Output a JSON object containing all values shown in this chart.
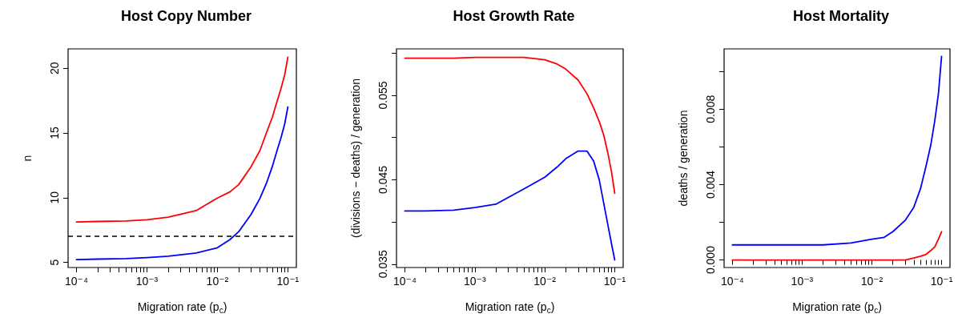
{
  "chart_data": [
    {
      "type": "line",
      "title": "Host Copy Number",
      "xlabel": "Migration rate (p$_{c}$)",
      "ylabel": "n",
      "log": "x",
      "marker": "none",
      "line_style": "solid",
      "x": [
        0.0001,
        0.0002,
        0.0005,
        0.001,
        0.002,
        0.005,
        0.01,
        0.015,
        0.02,
        0.03,
        0.04,
        0.05,
        0.06,
        0.07,
        0.08,
        0.09,
        0.1
      ],
      "series": [
        {
          "color": "#ff0000",
          "values": [
            8.12,
            8.16,
            8.2,
            8.29,
            8.49,
            9.0,
            9.97,
            10.44,
            11.0,
            12.39,
            13.62,
            15.06,
            16.19,
            17.42,
            18.45,
            19.48,
            20.85
          ]
        },
        {
          "color": "#0000ff",
          "values": [
            5.21,
            5.25,
            5.29,
            5.37,
            5.47,
            5.72,
            6.13,
            6.75,
            7.36,
            8.7,
            9.93,
            11.16,
            12.39,
            13.62,
            14.65,
            15.68,
            17.01
          ]
        }
      ],
      "ref_lines": [
        {
          "axis": "y",
          "value": 7,
          "color": "#000000",
          "line_style": "dashed"
        }
      ],
      "xlim": [
        7.6e-05,
        0.132
      ],
      "ylim": [
        4.6,
        21.5
      ],
      "yticks": [
        5,
        10,
        15,
        20
      ],
      "xticks": [
        {
          "value": 0.0001,
          "label": "10⁻⁴"
        },
        {
          "value": 0.0002,
          "label": null
        },
        {
          "value": 0.0003,
          "label": null
        },
        {
          "value": 0.0004,
          "label": null
        },
        {
          "value": 0.0005,
          "label": null
        },
        {
          "value": 0.0006,
          "label": null
        },
        {
          "value": 0.0007,
          "label": null
        },
        {
          "value": 0.0008,
          "label": null
        },
        {
          "value": 0.0009,
          "label": null
        },
        {
          "value": 0.001,
          "label": "10⁻³"
        },
        {
          "value": 0.002,
          "label": null
        },
        {
          "value": 0.003,
          "label": null
        },
        {
          "value": 0.004,
          "label": null
        },
        {
          "value": 0.005,
          "label": null
        },
        {
          "value": 0.006,
          "label": null
        },
        {
          "value": 0.007,
          "label": null
        },
        {
          "value": 0.008,
          "label": null
        },
        {
          "value": 0.009,
          "label": null
        },
        {
          "value": 0.01,
          "label": "10⁻²"
        },
        {
          "value": 0.02,
          "label": null
        },
        {
          "value": 0.03,
          "label": null
        },
        {
          "value": 0.04,
          "label": null
        },
        {
          "value": 0.05,
          "label": null
        },
        {
          "value": 0.06,
          "label": null
        },
        {
          "value": 0.07,
          "label": null
        },
        {
          "value": 0.08,
          "label": null
        },
        {
          "value": 0.09,
          "label": null
        },
        {
          "value": 0.1,
          "label": "10⁻¹"
        }
      ]
    },
    {
      "type": "line",
      "title": "Host Growth Rate",
      "xlabel": "Migration rate (p$_{c}$)",
      "ylabel": "(divisions − deaths) / generation",
      "log": "x",
      "marker": "none",
      "line_style": "solid",
      "x": [
        0.0001,
        0.0002,
        0.0005,
        0.001,
        0.002,
        0.005,
        0.01,
        0.015,
        0.02,
        0.03,
        0.04,
        0.05,
        0.06,
        0.07,
        0.08,
        0.09,
        0.1
      ],
      "series": [
        {
          "color": "#ff0000",
          "values": [
            0.0594,
            0.0594,
            0.0594,
            0.0595,
            0.0595,
            0.0595,
            0.0592,
            0.0587,
            0.0581,
            0.0568,
            0.0552,
            0.0535,
            0.0519,
            0.0502,
            0.0481,
            0.0459,
            0.0434
          ]
        },
        {
          "color": "#0000ff",
          "values": [
            0.0413,
            0.0413,
            0.0414,
            0.0417,
            0.0421,
            0.0439,
            0.0453,
            0.0465,
            0.0475,
            0.0484,
            0.0484,
            0.0472,
            0.045,
            0.0421,
            0.0396,
            0.0374,
            0.0355
          ]
        }
      ],
      "xlim": [
        7.6e-05,
        0.132
      ],
      "ylim": [
        0.0346,
        0.0605
      ],
      "yticks": [
        0.035,
        {
          "value": 0.04,
          "label": null
        },
        0.045,
        {
          "value": 0.05,
          "label": null
        },
        0.055,
        {
          "value": 0.06,
          "label": null
        }
      ],
      "xticks": [
        {
          "value": 0.0001,
          "label": "10⁻⁴"
        },
        {
          "value": 0.0002,
          "label": null
        },
        {
          "value": 0.0003,
          "label": null
        },
        {
          "value": 0.0004,
          "label": null
        },
        {
          "value": 0.0005,
          "label": null
        },
        {
          "value": 0.0006,
          "label": null
        },
        {
          "value": 0.0007,
          "label": null
        },
        {
          "value": 0.0008,
          "label": null
        },
        {
          "value": 0.0009,
          "label": null
        },
        {
          "value": 0.001,
          "label": "10⁻³"
        },
        {
          "value": 0.002,
          "label": null
        },
        {
          "value": 0.003,
          "label": null
        },
        {
          "value": 0.004,
          "label": null
        },
        {
          "value": 0.005,
          "label": null
        },
        {
          "value": 0.006,
          "label": null
        },
        {
          "value": 0.007,
          "label": null
        },
        {
          "value": 0.008,
          "label": null
        },
        {
          "value": 0.009,
          "label": null
        },
        {
          "value": 0.01,
          "label": "10⁻²"
        },
        {
          "value": 0.02,
          "label": null
        },
        {
          "value": 0.03,
          "label": null
        },
        {
          "value": 0.04,
          "label": null
        },
        {
          "value": 0.05,
          "label": null
        },
        {
          "value": 0.06,
          "label": null
        },
        {
          "value": 0.07,
          "label": null
        },
        {
          "value": 0.08,
          "label": null
        },
        {
          "value": 0.09,
          "label": null
        },
        {
          "value": 0.1,
          "label": "10⁻¹"
        }
      ]
    },
    {
      "type": "line",
      "title": "Host Mortality",
      "xlabel": "Migration rate (p$_{c}$)",
      "ylabel": "deaths / generation",
      "log": "x",
      "marker": "none",
      "line_style": "solid",
      "x": [
        0.0001,
        0.0002,
        0.0005,
        0.001,
        0.002,
        0.005,
        0.01,
        0.015,
        0.02,
        0.03,
        0.04,
        0.05,
        0.06,
        0.07,
        0.08,
        0.09,
        0.1
      ],
      "series": [
        {
          "color": "#0000ff",
          "values": [
            0.0008,
            0.0008,
            0.0008,
            0.0008,
            0.0008,
            0.0009,
            0.0011,
            0.0012,
            0.0015,
            0.0021,
            0.0028,
            0.0038,
            0.005,
            0.0061,
            0.0074,
            0.0088,
            0.0108
          ]
        },
        {
          "color": "#ff0000",
          "values": [
            0,
            0,
            0,
            0,
            0,
            0,
            0,
            0,
            0,
            0,
            0.0001,
            0.0002,
            0.0003,
            0.0005,
            0.0007,
            0.0011,
            0.0015
          ]
        }
      ],
      "xlim": [
        7.6e-05,
        0.132
      ],
      "ylim": [
        -0.0004,
        0.0112
      ],
      "yticks": [
        {
          "value": 0,
          "label": "0.000"
        },
        {
          "value": 0.002,
          "label": null
        },
        {
          "value": 0.004,
          "label": "0.004"
        },
        {
          "value": 0.006,
          "label": null
        },
        {
          "value": 0.008,
          "label": "0.008"
        },
        {
          "value": 0.01,
          "label": null
        }
      ],
      "xticks": [
        {
          "value": 0.0001,
          "label": "10⁻⁴"
        },
        {
          "value": 0.0002,
          "label": null
        },
        {
          "value": 0.0003,
          "label": null
        },
        {
          "value": 0.0004,
          "label": null
        },
        {
          "value": 0.0005,
          "label": null
        },
        {
          "value": 0.0006,
          "label": null
        },
        {
          "value": 0.0007,
          "label": null
        },
        {
          "value": 0.0008,
          "label": null
        },
        {
          "value": 0.0009,
          "label": null
        },
        {
          "value": 0.001,
          "label": "10⁻³"
        },
        {
          "value": 0.002,
          "label": null
        },
        {
          "value": 0.003,
          "label": null
        },
        {
          "value": 0.004,
          "label": null
        },
        {
          "value": 0.005,
          "label": null
        },
        {
          "value": 0.006,
          "label": null
        },
        {
          "value": 0.007,
          "label": null
        },
        {
          "value": 0.008,
          "label": null
        },
        {
          "value": 0.009,
          "label": null
        },
        {
          "value": 0.01,
          "label": "10⁻²"
        },
        {
          "value": 0.02,
          "label": null
        },
        {
          "value": 0.03,
          "label": null
        },
        {
          "value": 0.04,
          "label": null
        },
        {
          "value": 0.05,
          "label": null
        },
        {
          "value": 0.06,
          "label": null
        },
        {
          "value": 0.07,
          "label": null
        },
        {
          "value": 0.08,
          "label": null
        },
        {
          "value": 0.09,
          "label": null
        },
        {
          "value": 0.1,
          "label": "10⁻¹"
        }
      ]
    }
  ]
}
